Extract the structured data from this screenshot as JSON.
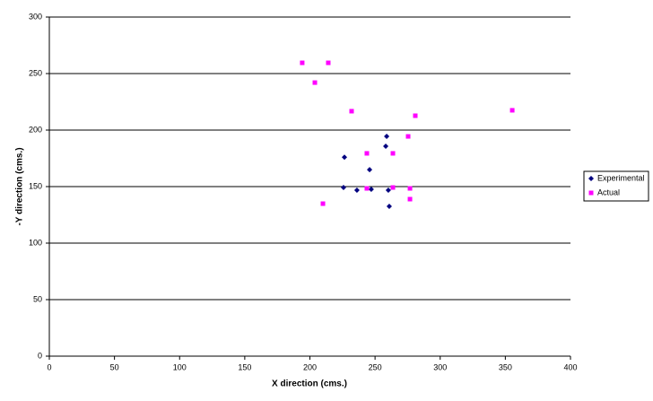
{
  "chart_data": {
    "type": "scatter",
    "x_label": "X direction (cms.)",
    "y_label": "-Y direction (cms.)",
    "xlim": [
      0,
      400
    ],
    "xticks": [
      0,
      50,
      100,
      150,
      200,
      250,
      300,
      350,
      400
    ],
    "ylim": [
      0,
      300
    ],
    "yticks": [
      0,
      50,
      100,
      150,
      200,
      250,
      300
    ],
    "grid": true,
    "legend": "right",
    "series": [
      {
        "name": "Experimental",
        "color": "#000080",
        "marker": "diamond",
        "x": [
          226.5,
          258.9,
          258.2,
          245.8,
          225.8,
          236.1,
          247.1,
          260.2,
          260.9
        ],
        "y": [
          176,
          194.4,
          185.7,
          165,
          149.2,
          146.8,
          147.6,
          146.8,
          132.5
        ]
      },
      {
        "name": "Actual",
        "color": "#ff00ff",
        "marker": "square",
        "x": [
          194.1,
          214.1,
          203.8,
          232,
          355.3,
          280.9,
          275.4,
          243.7,
          263.7,
          263.7,
          243.7,
          276.8,
          210,
          276.8
        ],
        "y": [
          259.5,
          259.5,
          242,
          216.7,
          217.5,
          212.7,
          194.4,
          179.4,
          179.4,
          149.2,
          148.4,
          148.4,
          134.9,
          138.9
        ]
      }
    ]
  }
}
